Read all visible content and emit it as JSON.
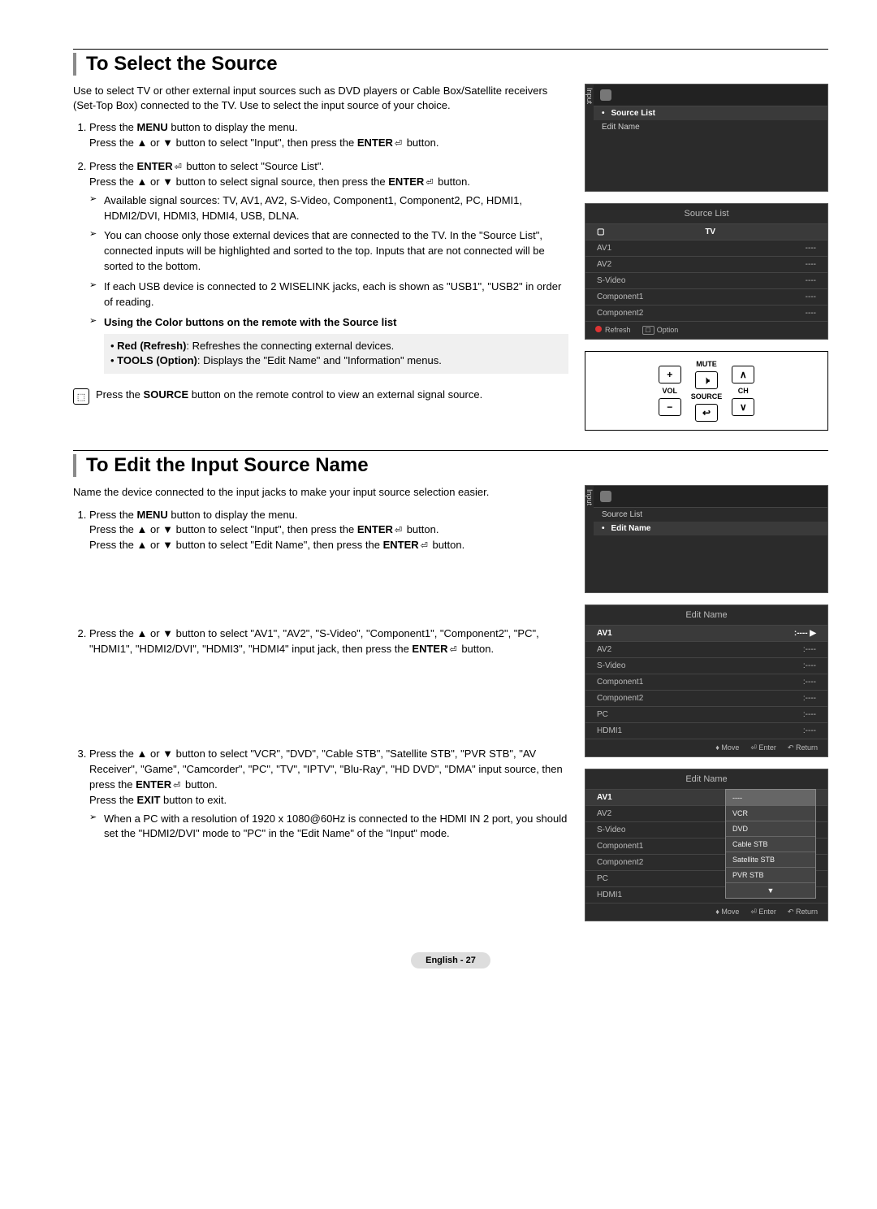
{
  "section1": {
    "heading": "To Select the Source",
    "intro": "Use to select TV or other external input sources such as DVD players or Cable Box/Satellite receivers (Set-Top Box) connected to the TV. Use to select the input source of your choice.",
    "step1a": "Press the ",
    "step1a_bold": "MENU",
    "step1a_cont": " button to display the menu.",
    "step1b": "Press the ▲ or ▼ button to select \"Input\", then press the ",
    "step1b_bold": "ENTER",
    "step1b_cont": " button.",
    "step2a": "Press the ",
    "step2a_bold": "ENTER",
    "step2a_cont": " button to select \"Source List\".",
    "step2b": "Press the ▲ or ▼ button to select signal source, then press the ",
    "step2b_bold": "ENTER",
    "step2b_cont": " button.",
    "bul1": "Available signal sources: TV, AV1, AV2, S-Video, Component1, Component2, PC, HDMI1, HDMI2/DVI, HDMI3, HDMI4, USB, DLNA.",
    "bul2": "You can choose only those external devices that are connected to the TV. In the \"Source List\", connected inputs will be highlighted and sorted to the top. Inputs that are not connected will be sorted to the bottom.",
    "bul3": "If each USB device is connected to 2 WISELINK jacks, each is shown as \"USB1\", \"USB2\" in order of reading.",
    "bul4_bold": "Using the Color buttons on the remote with the Source list",
    "sub_red_bold": "Red (Refresh)",
    "sub_red": ": Refreshes the connecting external devices.",
    "sub_tools_bold": "TOOLS (Option)",
    "sub_tools": ": Displays the \"Edit Name\" and \"Information\" menus.",
    "tip_pre": "Press the ",
    "tip_bold": "SOURCE",
    "tip_post": " button on the remote control to view an external signal source."
  },
  "menu1": {
    "side": "Input",
    "item1": "Source List",
    "item2": "Edit Name"
  },
  "sourcelist": {
    "title": "Source List",
    "r_tv": "TV",
    "items": [
      [
        "AV1",
        "----"
      ],
      [
        "AV2",
        "----"
      ],
      [
        "S-Video",
        "----"
      ],
      [
        "Component1",
        "----"
      ],
      [
        "Component2",
        "----"
      ]
    ],
    "refresh": "Refresh",
    "option": "Option"
  },
  "remote": {
    "plus": "+",
    "minus": "−",
    "vol": "VOL",
    "mute": "MUTE",
    "mutesym": "🕨",
    "source": "SOURCE",
    "srcicon": "↩",
    "up": "∧",
    "down": "∨",
    "ch": "CH"
  },
  "section2": {
    "heading": "To Edit the Input Source Name",
    "intro": "Name the device connected to the input jacks to make your input source selection easier.",
    "step1a": "Press the ",
    "step1a_bold": "MENU",
    "step1a_cont": " button to display the menu.",
    "step1b": "Press the ▲ or ▼ button to select \"Input\", then press the ",
    "step1b_bold": "ENTER",
    "step1b_cont": " button.",
    "step1c": "Press the ▲ or ▼ button to select \"Edit Name\", then press the ",
    "step1c_bold": "ENTER",
    "step1c_cont": " button.",
    "step2": "Press the ▲ or ▼ button to select \"AV1\", \"AV2\", \"S-Video\", \"Component1\", \"Component2\", \"PC\", \"HDMI1\", \"HDMI2/DVI\", \"HDMI3\", \"HDMI4\" input jack, then press the ",
    "step2_bold": "ENTER",
    "step2_cont": " button.",
    "step3": "Press the ▲ or ▼ button to select \"VCR\", \"DVD\", \"Cable STB\", \"Satellite STB\", \"PVR STB\", \"AV Receiver\", \"Game\", \"Camcorder\", \"PC\", \"TV\", \"IPTV\", \"Blu-Ray\", \"HD DVD\", \"DMA\" input source, then press the ",
    "step3_bold": "ENTER",
    "step3_cont": " button.",
    "step3_exit_pre": "Press the ",
    "step3_exit_bold": "EXIT",
    "step3_exit_post": " button to exit.",
    "step3_note": "When a PC with a resolution of 1920 x 1080@60Hz is connected to the HDMI IN 2 port, you should set the \"HDMI2/DVI\" mode to \"PC\" in the \"Edit Name\" of the \"Input\" mode."
  },
  "menu2": {
    "side": "Input",
    "item1": "Source List",
    "item2": "Edit Name"
  },
  "editlist": {
    "title": "Edit Name",
    "items": [
      [
        "AV1",
        ":----"
      ],
      [
        "AV2",
        ":----"
      ],
      [
        "S-Video",
        ":----"
      ],
      [
        "Component1",
        ":----"
      ],
      [
        "Component2",
        ":----"
      ],
      [
        "PC",
        ":----"
      ],
      [
        "HDMI1",
        ":----"
      ]
    ],
    "move": "Move",
    "enter": "Enter",
    "return": "Return"
  },
  "editlist2": {
    "title": "Edit Name",
    "items": [
      [
        "AV1",
        ""
      ],
      [
        "AV2",
        ""
      ],
      [
        "S-Video",
        ""
      ],
      [
        "Component1",
        ""
      ],
      [
        "Component2",
        ""
      ],
      [
        "PC",
        ""
      ],
      [
        "HDMI1",
        ""
      ]
    ],
    "popup": [
      "----",
      "VCR",
      "DVD",
      "Cable STB",
      "Satellite STB",
      "PVR STB"
    ],
    "move": "Move",
    "enter": "Enter",
    "return": "Return"
  },
  "footer": "English - 27",
  "glyphs": {
    "enter": "⏎",
    "updown": "♦",
    "return": "↶",
    "tools": "☐",
    "tri_r": "▶",
    "tri_d": "▼"
  }
}
